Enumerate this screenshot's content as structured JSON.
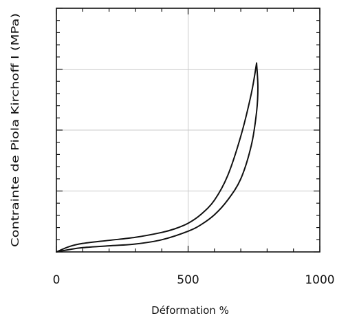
{
  "chart_data": {
    "type": "line",
    "title": "",
    "xlabel": "Déformation %",
    "ylabel": "Contrainte de Piola Kirchoff I (MPa)",
    "xlim": [
      0,
      1000
    ],
    "ylim": [
      0,
      4
    ],
    "x_ticks": [
      0,
      500,
      1000
    ],
    "x_tick_labels": [
      "0",
      "500",
      "1000"
    ],
    "y_tick_labels_shown": false,
    "grid": true,
    "series": [
      {
        "points": [
          [
            0,
            0
          ],
          [
            50,
            0.09
          ],
          [
            100,
            0.14
          ],
          [
            200,
            0.19
          ],
          [
            300,
            0.24
          ],
          [
            400,
            0.32
          ],
          [
            450,
            0.38
          ],
          [
            500,
            0.47
          ],
          [
            550,
            0.62
          ],
          [
            600,
            0.85
          ],
          [
            650,
            1.25
          ],
          [
            700,
            1.9
          ],
          [
            740,
            2.6
          ],
          [
            760,
            3.1
          ]
        ]
      },
      {
        "points": [
          [
            760,
            3.1
          ],
          [
            765,
            2.7
          ],
          [
            760,
            2.3
          ],
          [
            740,
            1.75
          ],
          [
            700,
            1.2
          ],
          [
            650,
            0.85
          ],
          [
            600,
            0.61
          ],
          [
            550,
            0.45
          ],
          [
            500,
            0.34
          ],
          [
            400,
            0.2
          ],
          [
            300,
            0.13
          ],
          [
            200,
            0.1
          ],
          [
            100,
            0.07
          ],
          [
            50,
            0.04
          ],
          [
            0,
            0
          ]
        ]
      }
    ]
  }
}
